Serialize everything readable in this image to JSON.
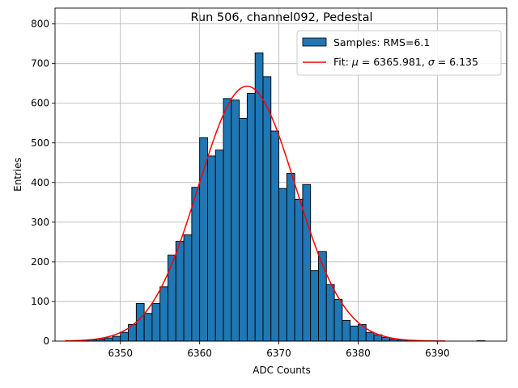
{
  "chart_data": {
    "type": "bar",
    "title": "Run 506, channel092, Pedestal",
    "xlabel": "ADC Counts",
    "ylabel": "Entries",
    "xlim": [
      6341.75,
      6398.75
    ],
    "ylim": [
      0,
      840
    ],
    "xticks": [
      6350,
      6360,
      6370,
      6380,
      6390
    ],
    "yticks": [
      0,
      100,
      200,
      300,
      400,
      500,
      600,
      700,
      800
    ],
    "grid": true,
    "legend_position": "top-right",
    "histogram": {
      "name": "Samples: RMS=6.1",
      "color": "#1f77b4",
      "bin_width": 1,
      "bin_starts": [
        6344,
        6345,
        6346,
        6347,
        6348,
        6349,
        6350,
        6351,
        6352,
        6353,
        6354,
        6355,
        6356,
        6357,
        6358,
        6359,
        6360,
        6361,
        6362,
        6363,
        6364,
        6365,
        6366,
        6367,
        6368,
        6369,
        6370,
        6371,
        6372,
        6373,
        6374,
        6375,
        6376,
        6377,
        6378,
        6379,
        6380,
        6381,
        6382,
        6383,
        6384,
        6385,
        6386,
        6387,
        6388,
        6389,
        6390,
        6391,
        6392,
        6393,
        6394,
        6395
      ],
      "values": [
        1,
        2,
        3,
        5,
        8,
        12,
        22,
        42,
        95,
        70,
        95,
        137,
        217,
        252,
        268,
        388,
        513,
        467,
        482,
        612,
        608,
        562,
        625,
        727,
        667,
        530,
        385,
        423,
        358,
        395,
        178,
        226,
        143,
        105,
        52,
        38,
        42,
        22,
        16,
        9,
        5,
        3,
        2,
        1,
        1,
        0,
        0,
        0,
        0,
        0,
        0,
        1
      ]
    },
    "series": [
      {
        "name": "Fit: μ = 6365.981, σ = 6.135",
        "type": "line",
        "color": "#ff0000",
        "mu": 6365.981,
        "sigma": 6.135,
        "amplitude": 643,
        "x_range": [
          6343,
          6391
        ]
      }
    ],
    "legend": [
      {
        "label_plain": "Samples: RMS=6.1"
      },
      {
        "label_prefix": "Fit: ",
        "mu_symbol": "μ",
        "mu_value": " = 6365.981, ",
        "sigma_symbol": "σ",
        "sigma_value": " = 6.135"
      }
    ]
  }
}
